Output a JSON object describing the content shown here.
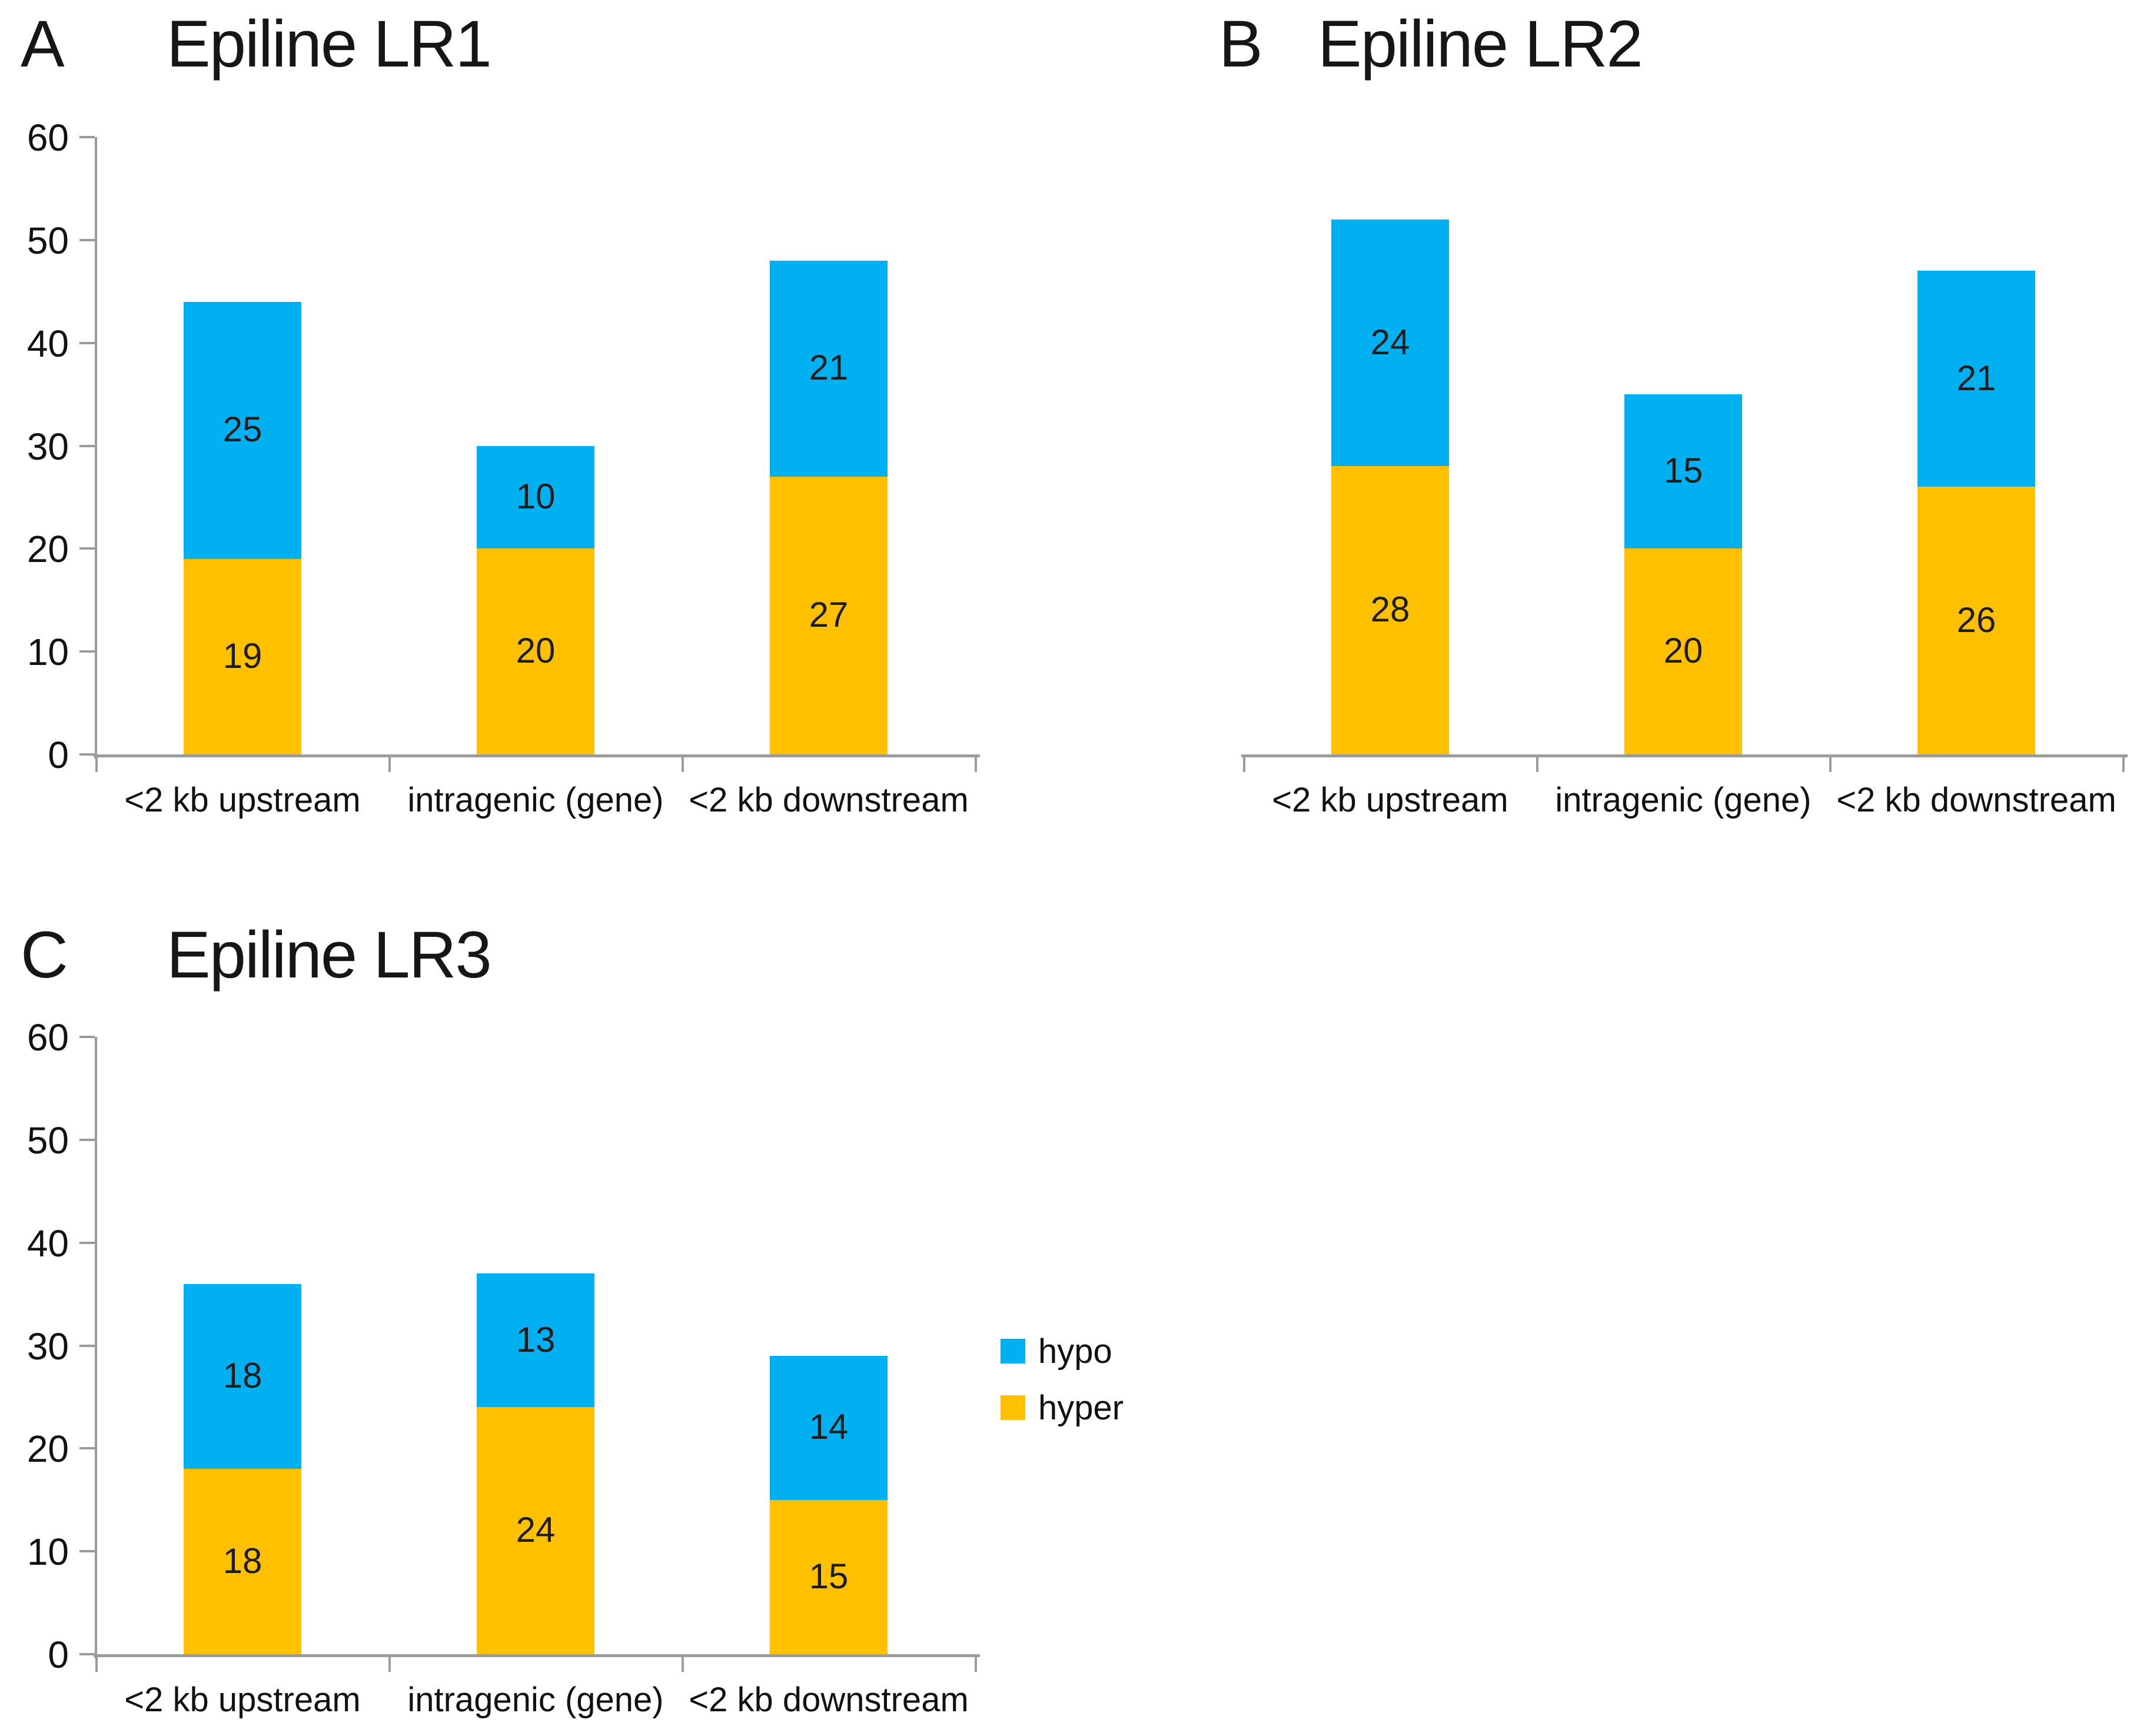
{
  "figure": {
    "background": "#ffffff",
    "axis_color": "#9b9b9b"
  },
  "legend": {
    "items": [
      {
        "label": "hypo",
        "color": "#00B0F0"
      },
      {
        "label": "hyper",
        "color": "#FFC000"
      }
    ]
  },
  "chart_data": [
    {
      "id": "A",
      "type": "bar",
      "stacked": true,
      "panel_label": "A",
      "title": "Epiline LR1",
      "categories": [
        "<2 kb upstream",
        "intragenic (gene)",
        "<2 kb downstream"
      ],
      "series": [
        {
          "name": "hyper",
          "color": "#FFC000",
          "values": [
            19,
            20,
            27
          ]
        },
        {
          "name": "hypo",
          "color": "#00B0F0",
          "values": [
            25,
            10,
            21
          ]
        }
      ],
      "totals": [
        44,
        30,
        48
      ],
      "xlabel": "",
      "ylabel": "",
      "ylim": [
        0,
        60
      ],
      "ytick_step": 10,
      "y_ticks": [
        0,
        10,
        20,
        30,
        40,
        50,
        60
      ],
      "show_y_axis": true,
      "grid": false,
      "legend_position": "none"
    },
    {
      "id": "B",
      "type": "bar",
      "stacked": true,
      "panel_label": "B",
      "title": "Epiline LR2",
      "categories": [
        "<2 kb upstream",
        "intragenic (gene)",
        "<2 kb downstream"
      ],
      "series": [
        {
          "name": "hyper",
          "color": "#FFC000",
          "values": [
            28,
            20,
            26
          ]
        },
        {
          "name": "hypo",
          "color": "#00B0F0",
          "values": [
            24,
            15,
            21
          ]
        }
      ],
      "totals": [
        52,
        35,
        47
      ],
      "xlabel": "",
      "ylabel": "",
      "ylim": [
        0,
        60
      ],
      "ytick_step": 10,
      "y_ticks": [],
      "show_y_axis": false,
      "grid": false,
      "legend_position": "none"
    },
    {
      "id": "C",
      "type": "bar",
      "stacked": true,
      "panel_label": "C",
      "title": "Epiline LR3",
      "categories": [
        "<2 kb upstream",
        "intragenic (gene)",
        "<2 kb downstream"
      ],
      "series": [
        {
          "name": "hyper",
          "color": "#FFC000",
          "values": [
            18,
            24,
            15
          ]
        },
        {
          "name": "hypo",
          "color": "#00B0F0",
          "values": [
            18,
            13,
            14
          ]
        }
      ],
      "totals": [
        36,
        37,
        29
      ],
      "xlabel": "",
      "ylabel": "",
      "ylim": [
        0,
        60
      ],
      "ytick_step": 10,
      "y_ticks": [
        0,
        10,
        20,
        30,
        40,
        50,
        60
      ],
      "show_y_axis": true,
      "grid": false,
      "legend_position": "right-of-C"
    }
  ]
}
